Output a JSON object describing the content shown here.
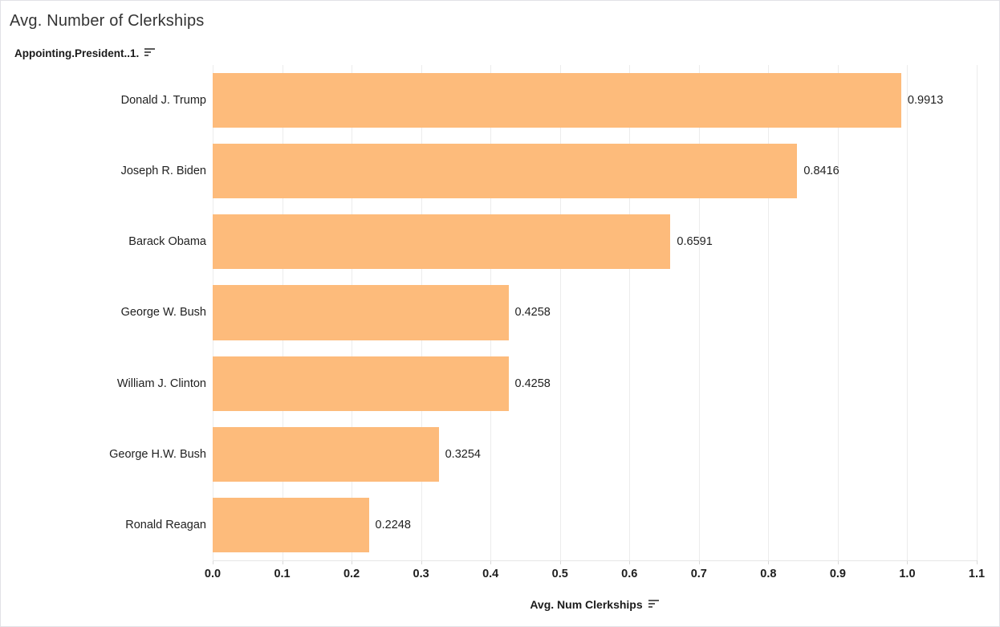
{
  "title": "Avg. Number of Clerkships",
  "row_header": {
    "label": "Appointing.President..1."
  },
  "x_axis": {
    "label": "Avg. Num Clerkships",
    "ticks": [
      "0.0",
      "0.1",
      "0.2",
      "0.3",
      "0.4",
      "0.5",
      "0.6",
      "0.7",
      "0.8",
      "0.9",
      "1.0",
      "1.1"
    ]
  },
  "colors": {
    "bar": "#FDBB7B",
    "gridline": "#ECECEC",
    "tick_mark": "#D9D9D9",
    "axis_line": "#E6E6E6",
    "text": "#1F1F1F",
    "title_text": "#343434"
  },
  "chart_data": {
    "type": "bar",
    "orientation": "horizontal",
    "title": "Avg. Number of Clerkships",
    "categories": [
      "Donald J. Trump",
      "Joseph R. Biden",
      "Barack Obama",
      "George W. Bush",
      "William J. Clinton",
      "George H.W. Bush",
      "Ronald Reagan"
    ],
    "values": [
      0.9913,
      0.8416,
      0.6591,
      0.4258,
      0.4258,
      0.3254,
      0.2248
    ],
    "value_labels": [
      "0.9913",
      "0.8416",
      "0.6591",
      "0.4258",
      "0.4258",
      "0.3254",
      "0.2248"
    ],
    "xlabel": "Avg. Num Clerkships",
    "ylabel": "Appointing.President..1.",
    "xlim": [
      0,
      1.1
    ],
    "x_tick_step": 0.1,
    "grid": "vertical",
    "legend_position": "none",
    "sort": "descending"
  }
}
